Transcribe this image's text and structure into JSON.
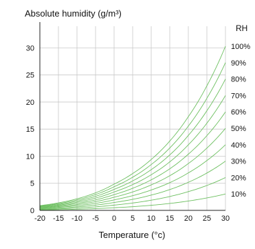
{
  "chart_data": {
    "type": "line",
    "title": "Absolute humidity (g/m³)",
    "xlabel": "Temperature (°c)",
    "ylabel": "",
    "xlim": [
      -20,
      30
    ],
    "ylim": [
      0,
      34
    ],
    "x_ticks": [
      -20,
      -15,
      -10,
      -5,
      0,
      5,
      10,
      15,
      20,
      25,
      30
    ],
    "x_tick_labels": [
      "-20",
      "-15",
      "-10",
      "-5",
      "0",
      "5",
      "10",
      "15",
      "20",
      "25",
      "30"
    ],
    "y_ticks": [
      0,
      5,
      10,
      15,
      20,
      25,
      30
    ],
    "y_tick_labels": [
      "0",
      "5",
      "10",
      "15",
      "20",
      "25",
      "30"
    ],
    "grid": true,
    "line_color": "#6cbf5f",
    "grid_color": "#c8c8c8",
    "legend_title": "RH",
    "legend_placement": "right",
    "x": [
      -20,
      -15,
      -10,
      -5,
      0,
      5,
      10,
      15,
      20,
      25,
      30
    ],
    "series": [
      {
        "name": "100%",
        "values": [
          0.88,
          1.39,
          2.14,
          3.24,
          4.85,
          6.8,
          9.4,
          12.8,
          17.3,
          23.0,
          30.3
        ]
      },
      {
        "name": "90%",
        "values": [
          0.79,
          1.25,
          1.93,
          2.92,
          4.37,
          6.12,
          8.46,
          11.52,
          15.57,
          20.7,
          27.27
        ]
      },
      {
        "name": "80%",
        "values": [
          0.7,
          1.11,
          1.71,
          2.59,
          3.88,
          5.44,
          7.52,
          10.24,
          13.84,
          18.4,
          24.24
        ]
      },
      {
        "name": "70%",
        "values": [
          0.62,
          0.97,
          1.5,
          2.27,
          3.4,
          4.76,
          6.58,
          8.96,
          12.11,
          16.1,
          21.21
        ]
      },
      {
        "name": "60%",
        "values": [
          0.53,
          0.83,
          1.28,
          1.94,
          2.91,
          4.08,
          5.64,
          7.68,
          10.38,
          13.8,
          18.18
        ]
      },
      {
        "name": "50%",
        "values": [
          0.44,
          0.7,
          1.07,
          1.62,
          2.43,
          3.4,
          4.7,
          6.4,
          8.65,
          11.5,
          15.15
        ]
      },
      {
        "name": "40%",
        "values": [
          0.35,
          0.56,
          0.86,
          1.3,
          1.94,
          2.72,
          3.76,
          5.12,
          6.92,
          9.2,
          12.12
        ]
      },
      {
        "name": "30%",
        "values": [
          0.26,
          0.42,
          0.64,
          0.97,
          1.46,
          2.04,
          2.82,
          3.84,
          5.19,
          6.9,
          9.09
        ]
      },
      {
        "name": "20%",
        "values": [
          0.18,
          0.28,
          0.43,
          0.65,
          0.97,
          1.36,
          1.88,
          2.56,
          3.46,
          4.6,
          6.06
        ]
      },
      {
        "name": "10%",
        "values": [
          0.09,
          0.14,
          0.21,
          0.32,
          0.49,
          0.68,
          0.94,
          1.28,
          1.73,
          2.3,
          3.03
        ]
      }
    ]
  }
}
